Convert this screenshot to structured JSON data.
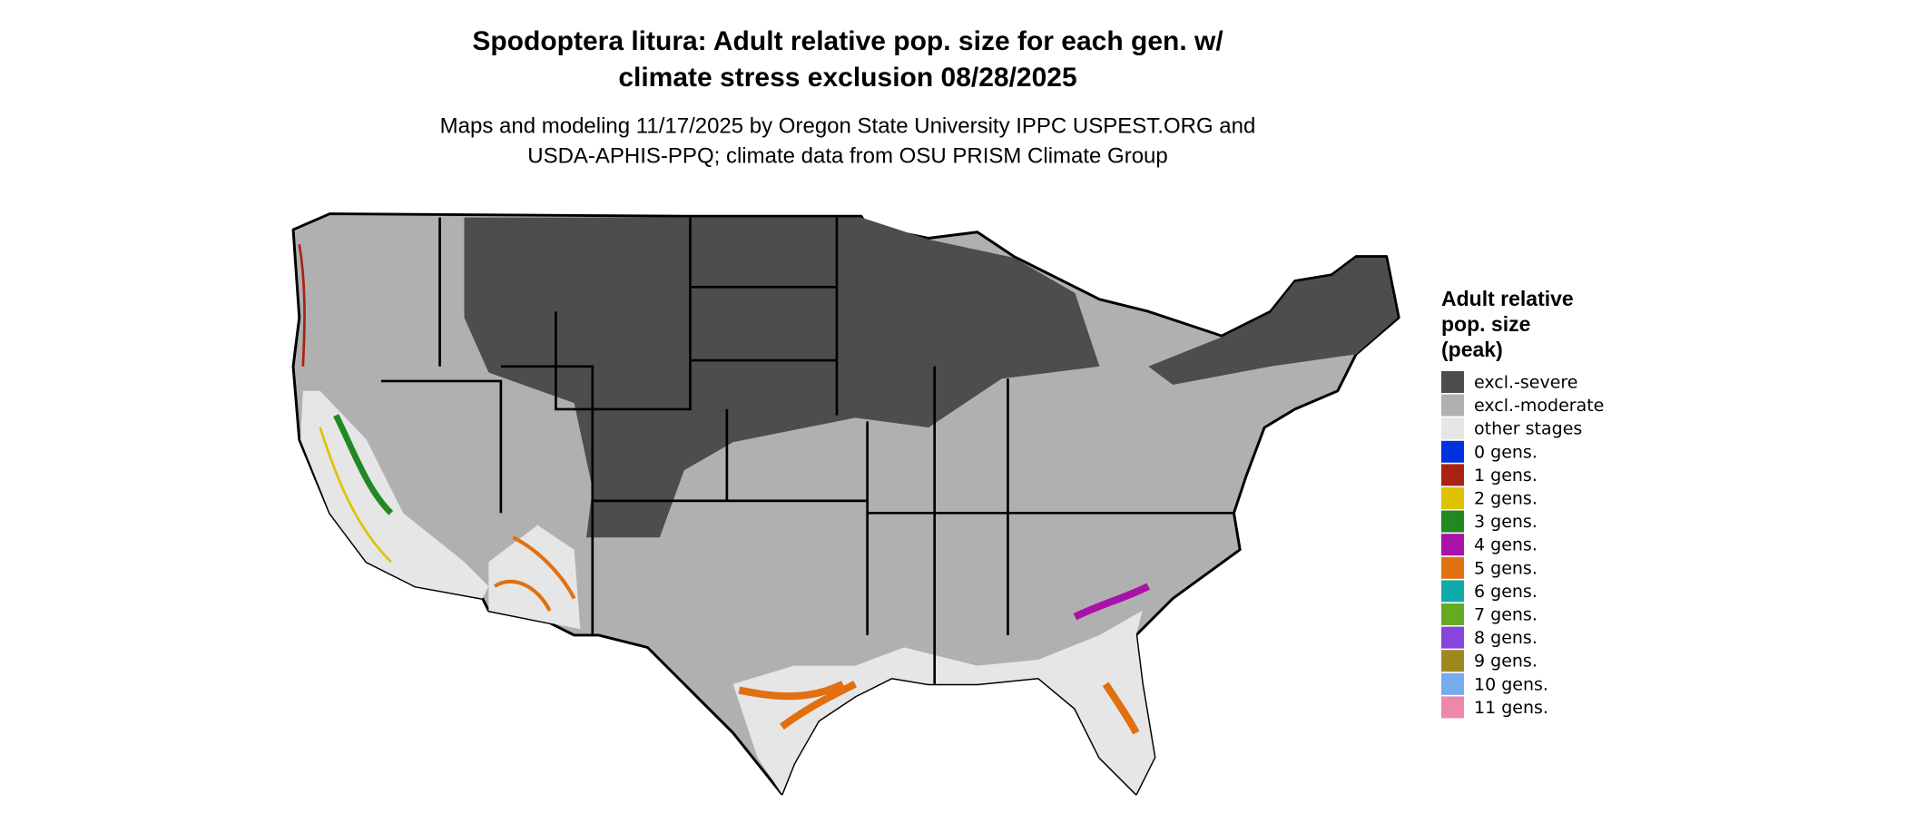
{
  "header": {
    "title_lines": [
      "Spodoptera litura: Adult relative pop. size for each gen. w/",
      "climate stress exclusion 08/28/2025"
    ],
    "subtitle_lines": [
      "Maps and modeling 11/17/2025 by Oregon State University IPPC USPEST.ORG and",
      "USDA-APHIS-PPQ; climate data from OSU PRISM Climate Group"
    ]
  },
  "legend": {
    "title_lines": [
      "Adult relative",
      "pop. size",
      "(peak)"
    ],
    "items": [
      {
        "label": "excl.-severe",
        "color": "#4d4d4d"
      },
      {
        "label": "excl.-moderate",
        "color": "#b0b0b0"
      },
      {
        "label": "other stages",
        "color": "#e6e6e6"
      },
      {
        "label": "0 gens.",
        "color": "#0033dd"
      },
      {
        "label": "1 gens.",
        "color": "#aa2211"
      },
      {
        "label": "2 gens.",
        "color": "#ddc300"
      },
      {
        "label": "3 gens.",
        "color": "#228822"
      },
      {
        "label": "4 gens.",
        "color": "#aa11aa"
      },
      {
        "label": "5 gens.",
        "color": "#e07010"
      },
      {
        "label": "6 gens.",
        "color": "#11aaaa"
      },
      {
        "label": "7 gens.",
        "color": "#66aa22"
      },
      {
        "label": "8 gens.",
        "color": "#8844dd"
      },
      {
        "label": "9 gens.",
        "color": "#a08820"
      },
      {
        "label": "10 gens.",
        "color": "#77aaee"
      },
      {
        "label": "11 gens.",
        "color": "#ee88aa"
      }
    ]
  }
}
